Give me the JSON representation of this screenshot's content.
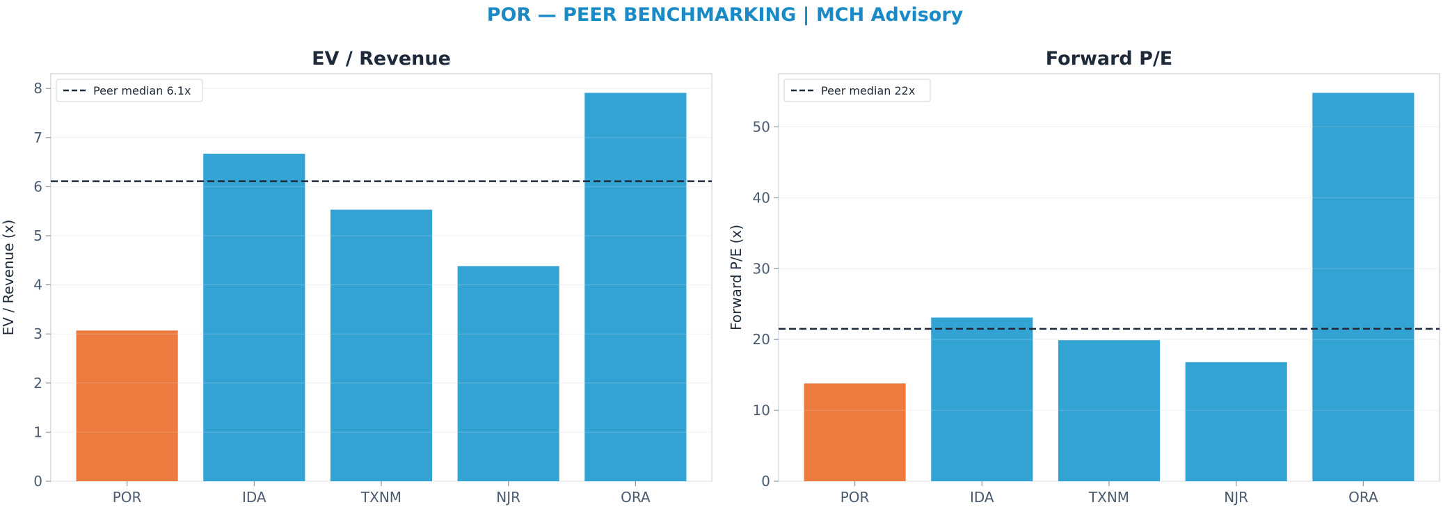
{
  "suptitle": "POR — PEER BENCHMARKING | MCH Advisory",
  "colors": {
    "highlight": "#ed7b3f",
    "peer": "#33a3d4",
    "median_line": "#1e2a3a"
  },
  "chart_data": [
    {
      "type": "bar",
      "title": "EV / Revenue",
      "ylabel": "EV / Revenue (x)",
      "categories": [
        "POR",
        "IDA",
        "TXNM",
        "NJR",
        "ORA"
      ],
      "values": [
        3.07,
        6.67,
        5.53,
        4.38,
        7.91
      ],
      "highlight": "POR",
      "ylim": [
        0,
        8.3
      ],
      "yticks": [
        0,
        1,
        2,
        3,
        4,
        5,
        6,
        7,
        8
      ],
      "median": 6.11,
      "legend": {
        "label": "Peer median 6.1x",
        "position": "upper-left"
      },
      "grid": true
    },
    {
      "type": "bar",
      "title": "Forward P/E",
      "ylabel": "Forward P/E (x)",
      "categories": [
        "POR",
        "IDA",
        "TXNM",
        "NJR",
        "ORA"
      ],
      "values": [
        13.8,
        23.1,
        19.9,
        16.8,
        54.8
      ],
      "highlight": "POR",
      "ylim": [
        0,
        57.5
      ],
      "yticks": [
        0,
        10,
        20,
        30,
        40,
        50
      ],
      "median": 21.5,
      "legend": {
        "label": "Peer median 22x",
        "position": "upper-left"
      },
      "grid": true
    }
  ]
}
